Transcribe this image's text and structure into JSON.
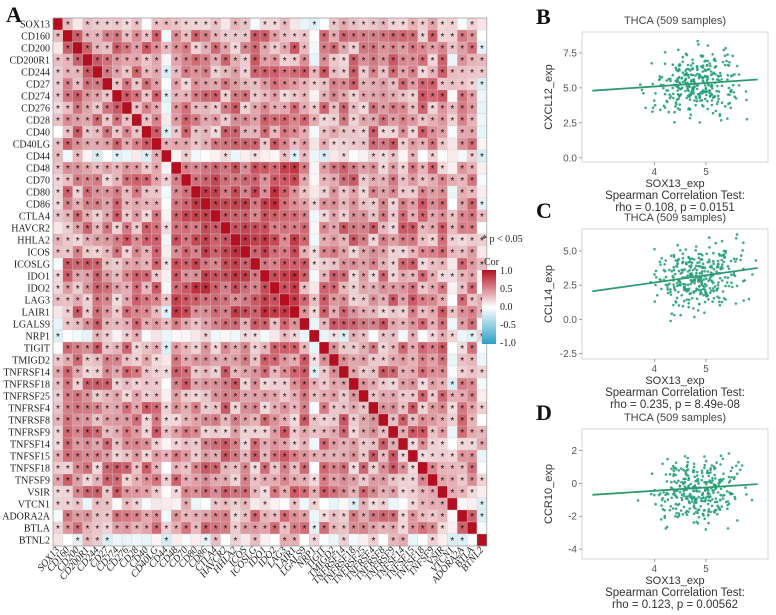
{
  "panels": {
    "A": "A",
    "B": "B",
    "C": "C",
    "D": "D"
  },
  "legend": {
    "note": "* p < 0.05",
    "title": "Cor",
    "ticks": [
      "1.0",
      "0.5",
      "0.0",
      "-0.5",
      "-1.0"
    ]
  },
  "colors": {
    "positive": "#c8102e",
    "negative": "#2b9fc4",
    "zero": "#ffffff",
    "points": "#26a07a",
    "line": "#2e9a6e"
  },
  "chart_data": [
    {
      "type": "heatmap",
      "title": "",
      "genes": [
        "SOX13",
        "CD160",
        "CD200",
        "CD200R1",
        "CD244",
        "CD27",
        "CD274",
        "CD276",
        "CD28",
        "CD40",
        "CD40LG",
        "CD44",
        "CD48",
        "CD70",
        "CD80",
        "CD86",
        "CTLA4",
        "HAVCR2",
        "HHLA2",
        "ICOS",
        "ICOSLG",
        "IDO1",
        "IDO2",
        "LAG3",
        "LAIR1",
        "LGALS9",
        "NRP1",
        "TIGIT",
        "TMIGD2",
        "TNFRSF14",
        "TNFRSF18",
        "TNFRSF25",
        "TNFRSF4",
        "TNFRSF8",
        "TNFRSF9",
        "TNFSF14",
        "TNFSF15",
        "TNFSF18",
        "TNFSF9",
        "VSIR",
        "VTCN1",
        "ADORA2A",
        "BTLA",
        "BTNL2"
      ],
      "value_range": [
        -1.0,
        1.0
      ],
      "significance_marker": "*"
    },
    {
      "type": "scatter",
      "panel": "B",
      "title": "THCA (509 samples)",
      "xlabel": "SOX13_exp",
      "ylabel": "CXCL12_exp",
      "xlim": [
        2.6,
        6.2
      ],
      "ylim": [
        -0.3,
        9.0
      ],
      "xticks": [
        4,
        5
      ],
      "yticks": [
        0.0,
        2.5,
        5.0,
        7.5
      ],
      "ytick_labels": [
        "0.0",
        "2.5",
        "5.0",
        "7.5"
      ],
      "y_center": 5.2,
      "y_spread": 1.1,
      "fit_line": {
        "x": [
          2.8,
          6.0
        ],
        "y": [
          4.8,
          5.6
        ]
      },
      "test": "Spearman Correlation Test:",
      "result": "rho = 0.108, p = 0.0151"
    },
    {
      "type": "scatter",
      "panel": "C",
      "title": "THCA (509 samples)",
      "xlabel": "SOX13_exp",
      "ylabel": "CCL14_exp",
      "xlim": [
        2.6,
        6.2
      ],
      "ylim": [
        -2.9,
        6.6
      ],
      "xticks": [
        4,
        5
      ],
      "yticks": [
        -2.5,
        0.0,
        2.5,
        5.0
      ],
      "ytick_labels": [
        "-2.5",
        "0.0",
        "2.5",
        "5.0"
      ],
      "y_center": 3.1,
      "y_spread": 1.1,
      "fit_line": {
        "x": [
          2.8,
          6.0
        ],
        "y": [
          2.05,
          3.75
        ]
      },
      "test": "Spearman Correlation Test:",
      "result": "rho = 0.235, p = 8.49e-08"
    },
    {
      "type": "scatter",
      "panel": "D",
      "title": "THCA (509 samples)",
      "xlabel": "SOX13_exp",
      "ylabel": "CCR10_exp",
      "xlim": [
        2.6,
        6.2
      ],
      "ylim": [
        -4.6,
        3.3
      ],
      "xticks": [
        4,
        5
      ],
      "yticks": [
        -4,
        -2,
        0,
        2
      ],
      "ytick_labels": [
        "-4",
        "-2",
        "0",
        "2"
      ],
      "y_center": -0.4,
      "y_spread": 0.9,
      "fit_line": {
        "x": [
          2.8,
          6.0
        ],
        "y": [
          -0.7,
          -0.05
        ]
      },
      "test": "Spearman Correlation Test:",
      "result": "rho = 0.123, p = 0.00562"
    }
  ]
}
